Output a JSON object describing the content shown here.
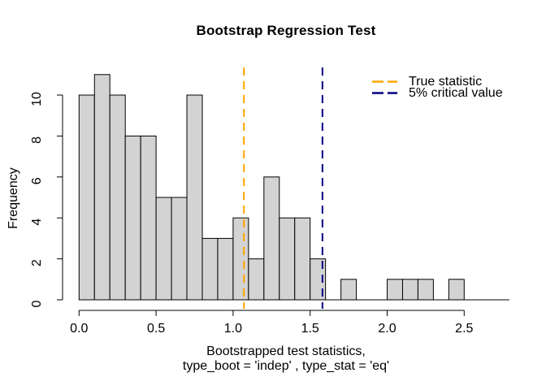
{
  "chart_data": {
    "type": "bar",
    "subtype": "histogram",
    "title": "Bootstrap Regression Test",
    "xlabel_line1": "Bootstrapped test statistics,",
    "xlabel_line2": "type_boot = 'indep' , type_stat = 'eq'",
    "ylabel": "Frequency",
    "bin_start": 0.0,
    "bin_width": 0.1,
    "counts": [
      10,
      11,
      10,
      8,
      8,
      5,
      5,
      10,
      3,
      3,
      4,
      2,
      6,
      4,
      4,
      2,
      0,
      1,
      0,
      0,
      1,
      1,
      1,
      0,
      1
    ],
    "xlim": [
      0.0,
      2.5
    ],
    "ylim": [
      0,
      11
    ],
    "x_ticks": [
      {
        "v": 0.0,
        "label": "0.0"
      },
      {
        "v": 0.5,
        "label": "0.5"
      },
      {
        "v": 1.0,
        "label": "1.0"
      },
      {
        "v": 1.5,
        "label": "1.5"
      },
      {
        "v": 2.0,
        "label": "2.0"
      },
      {
        "v": 2.5,
        "label": "2.5"
      }
    ],
    "y_ticks": [
      {
        "v": 0,
        "label": "0"
      },
      {
        "v": 2,
        "label": "2"
      },
      {
        "v": 4,
        "label": "4"
      },
      {
        "v": 6,
        "label": "6"
      },
      {
        "v": 8,
        "label": "8"
      },
      {
        "v": 10,
        "label": "10"
      }
    ],
    "bar_fill": "#D3D3D3",
    "bar_stroke": "#000000",
    "grid": false,
    "vlines": [
      {
        "name": "true-statistic",
        "value": 1.07,
        "color": "#FFA500",
        "style": "dashed"
      },
      {
        "name": "critical-value",
        "value": 1.58,
        "color": "#000080",
        "style": "dashed"
      }
    ],
    "legend_position": "top-right",
    "legend": [
      {
        "label": "True statistic",
        "color": "#FFA500"
      },
      {
        "label": "5% critical value",
        "color": "#000080"
      }
    ]
  }
}
